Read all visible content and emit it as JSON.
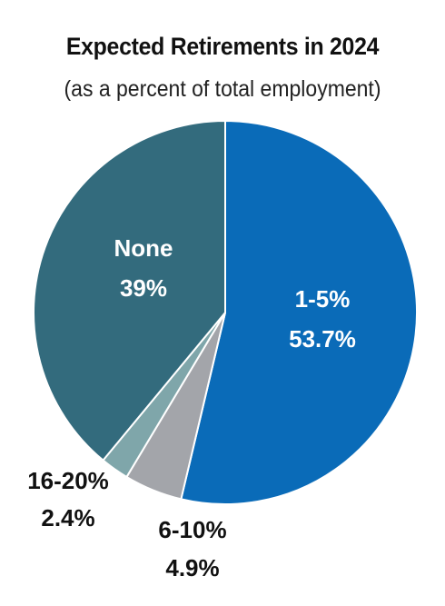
{
  "chart_data": {
    "type": "pie",
    "title": "Expected Retirements in 2024",
    "subtitle": "(as a percent of total employment)",
    "slices": [
      {
        "label": "1-5%",
        "value_text": "53.7%",
        "value": 53.7,
        "color": "#0a6bb8",
        "label_color": "#ffffff"
      },
      {
        "label": "6-10%",
        "value_text": "4.9%",
        "value": 4.9,
        "color": "#a3a5aa",
        "label_color": "#111111"
      },
      {
        "label": "16-20%",
        "value_text": "2.4%",
        "value": 2.4,
        "color": "#7fa6aa",
        "label_color": "#111111"
      },
      {
        "label": "None",
        "value_text": "39%",
        "value": 39,
        "color": "#336b7d",
        "label_color": "#ffffff"
      }
    ]
  }
}
